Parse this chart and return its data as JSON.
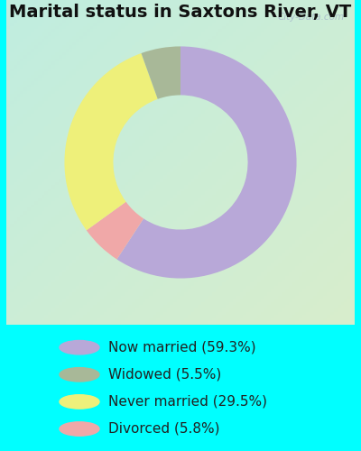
{
  "title": "Marital status in Saxtons River, VT",
  "slices": [
    59.3,
    5.8,
    29.5,
    5.5
  ],
  "slice_order_labels": [
    "Now married",
    "Divorced",
    "Never married",
    "Widowed"
  ],
  "colors": [
    "#b8a8d8",
    "#f0a8a8",
    "#eef07a",
    "#a8b898"
  ],
  "legend_labels": [
    "Now married (59.3%)",
    "Widowed (5.5%)",
    "Never married (29.5%)",
    "Divorced (5.8%)"
  ],
  "legend_colors": [
    "#b8a8d8",
    "#a8b898",
    "#eef07a",
    "#f0a8a8"
  ],
  "outer_bg": "#00ffff",
  "chart_bg_tl": "#c0ede0",
  "chart_bg_br": "#d8edcc",
  "title_fontsize": 14,
  "legend_fontsize": 11,
  "watermark": "City-Data.com"
}
